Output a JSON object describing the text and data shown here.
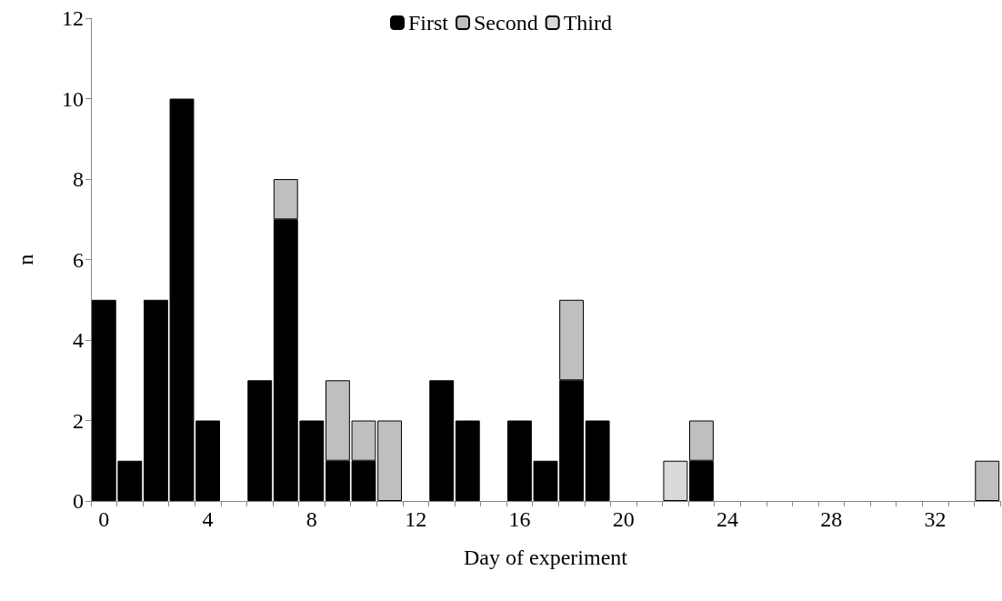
{
  "chart_data": {
    "type": "bar",
    "stacked": true,
    "xlabel": "Day of experiment",
    "ylabel": "n",
    "categories": [
      "0",
      null,
      null,
      null,
      "4",
      null,
      null,
      null,
      "8",
      null,
      null,
      null,
      "12",
      null,
      null,
      null,
      "16",
      null,
      null,
      null,
      "20",
      null,
      null,
      null,
      "24",
      null,
      null,
      null,
      "28",
      null,
      null,
      null,
      "32",
      null,
      null
    ],
    "series": [
      {
        "name": "First",
        "color": "#000000",
        "values": [
          5,
          1,
          5,
          10,
          2,
          0,
          3,
          7,
          2,
          1,
          1,
          0,
          0,
          3,
          2,
          0,
          2,
          1,
          3,
          2,
          0,
          0,
          0,
          1,
          0,
          0,
          0,
          0,
          0,
          0,
          0,
          0,
          0,
          0,
          0
        ]
      },
      {
        "name": "Second",
        "color": "#bfbfbf",
        "values": [
          0,
          0,
          0,
          0,
          0,
          0,
          0,
          1,
          0,
          2,
          1,
          2,
          0,
          0,
          0,
          0,
          0,
          0,
          2,
          0,
          0,
          0,
          0,
          1,
          0,
          0,
          0,
          0,
          0,
          0,
          0,
          0,
          0,
          0,
          1
        ]
      },
      {
        "name": "Third",
        "color": "#d9d9d9",
        "values": [
          0,
          0,
          0,
          0,
          0,
          0,
          0,
          0,
          0,
          0,
          0,
          0,
          0,
          0,
          0,
          0,
          0,
          0,
          0,
          0,
          0,
          0,
          1,
          0,
          0,
          0,
          0,
          0,
          0,
          0,
          0,
          0,
          0,
          0,
          0
        ]
      }
    ],
    "ylim": [
      0,
      12
    ],
    "yticks": [
      0,
      2,
      4,
      6,
      8,
      10,
      12
    ],
    "grid": false,
    "legend": "top"
  }
}
